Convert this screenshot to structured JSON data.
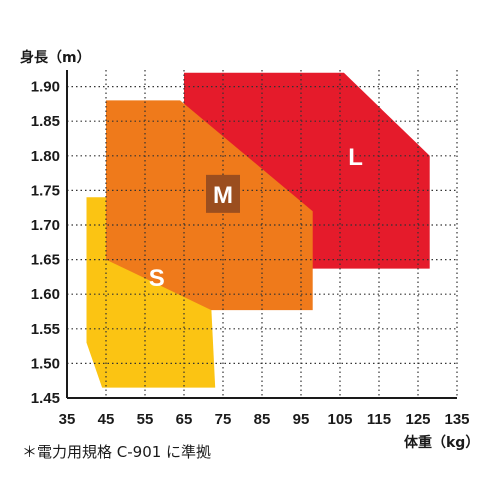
{
  "chart_data": {
    "type": "area",
    "ylabel": "身長（m）",
    "xlabel": "体重（kg）",
    "xlim": [
      35,
      135
    ],
    "ylim": [
      1.45,
      1.9
    ],
    "x_ticks": [
      "35",
      "45",
      "55",
      "65",
      "75",
      "85",
      "95",
      "105",
      "115",
      "125",
      "135"
    ],
    "y_ticks": [
      "1.45",
      "1.50",
      "1.55",
      "1.60",
      "1.65",
      "1.70",
      "1.75",
      "1.80",
      "1.85",
      "1.90"
    ],
    "grid": true,
    "regions": [
      {
        "name": "S",
        "color": "#fbc413",
        "points": [
          [
            40,
            1.74
          ],
          [
            45,
            1.74
          ],
          [
            72,
            1.58
          ],
          [
            73,
            1.465
          ],
          [
            44,
            1.465
          ],
          [
            40,
            1.53
          ]
        ]
      },
      {
        "name": "L",
        "color": "#e51b2b",
        "points": [
          [
            65,
            1.92
          ],
          [
            106,
            1.92
          ],
          [
            128,
            1.8
          ],
          [
            128,
            1.637
          ],
          [
            74,
            1.637
          ],
          [
            65,
            1.7
          ]
        ]
      },
      {
        "name": "M",
        "color": "#ef7a1b",
        "points": [
          [
            45,
            1.88
          ],
          [
            64,
            1.88
          ],
          [
            98,
            1.72
          ],
          [
            98,
            1.577
          ],
          [
            72,
            1.577
          ],
          [
            45,
            1.65
          ]
        ]
      }
    ],
    "labels": [
      {
        "text": "S",
        "x": 58,
        "y": 1.625,
        "style": "plain"
      },
      {
        "text": "M",
        "x": 75,
        "y": 1.745,
        "style": "boxed",
        "box_color": "#9b4e1f",
        "text_color": "#8ab3d2"
      },
      {
        "text": "L",
        "x": 109,
        "y": 1.8,
        "style": "plain"
      }
    ]
  },
  "footnote": "＊電力用規格 C-901 に準拠"
}
